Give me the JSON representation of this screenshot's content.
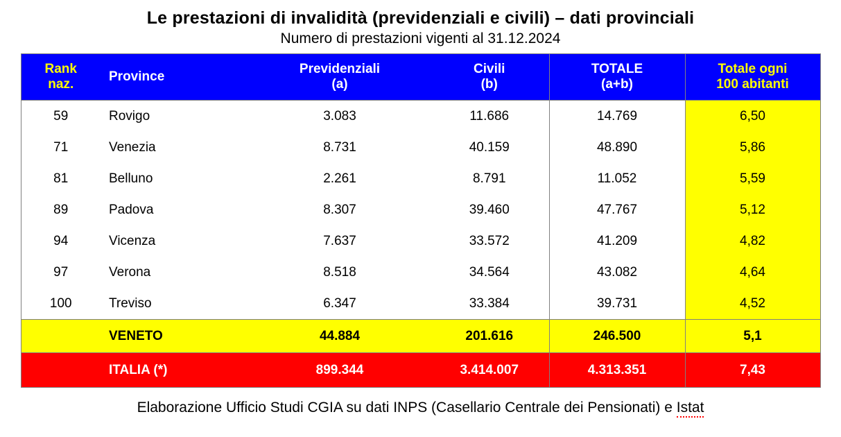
{
  "title": "Le prestazioni di invalidità (previdenziali e civili) – dati provinciali",
  "subtitle": "Numero di prestazioni vigenti al 31.12.2024",
  "colors": {
    "header_bg": "#0000FF",
    "header_text": "#FFFFFF",
    "header_accent_text": "#FFFF00",
    "highlight_bg": "#FFFF00",
    "italia_bg": "#FF0000",
    "italia_text": "#FFFFFF",
    "grid_border": "#808080",
    "spellcheck_underline": "#FF0000"
  },
  "table": {
    "columns": [
      {
        "id": "rank",
        "label": "Rank\nnaz.",
        "accent": true,
        "sep": false,
        "highlight": false
      },
      {
        "id": "province",
        "label": "Province",
        "accent": false,
        "sep": false,
        "highlight": false
      },
      {
        "id": "previdenziali",
        "label": "Previdenziali\n(a)",
        "accent": false,
        "sep": false,
        "highlight": false
      },
      {
        "id": "civili",
        "label": "Civili\n(b)",
        "accent": false,
        "sep": false,
        "highlight": false
      },
      {
        "id": "totale",
        "label": "TOTALE\n(a+b)",
        "accent": false,
        "sep": true,
        "highlight": false
      },
      {
        "id": "per100",
        "label": "Totale ogni\n100 abitanti",
        "accent": true,
        "sep": true,
        "highlight": true
      }
    ],
    "rows": [
      {
        "rank": "59",
        "province": "Rovigo",
        "previdenziali": "3.083",
        "civili": "11.686",
        "totale": "14.769",
        "per100": "6,50"
      },
      {
        "rank": "71",
        "province": "Venezia",
        "previdenziali": "8.731",
        "civili": "40.159",
        "totale": "48.890",
        "per100": "5,86"
      },
      {
        "rank": "81",
        "province": "Belluno",
        "previdenziali": "2.261",
        "civili": "8.791",
        "totale": "11.052",
        "per100": "5,59"
      },
      {
        "rank": "89",
        "province": "Padova",
        "previdenziali": "8.307",
        "civili": "39.460",
        "totale": "47.767",
        "per100": "5,12"
      },
      {
        "rank": "94",
        "province": "Vicenza",
        "previdenziali": "7.637",
        "civili": "33.572",
        "totale": "41.209",
        "per100": "4,82"
      },
      {
        "rank": "97",
        "province": "Verona",
        "previdenziali": "8.518",
        "civili": "34.564",
        "totale": "43.082",
        "per100": "4,64"
      },
      {
        "rank": "100",
        "province": "Treviso",
        "previdenziali": "6.347",
        "civili": "33.384",
        "totale": "39.731",
        "per100": "4,52"
      }
    ],
    "totals": [
      {
        "style": "veneto",
        "rank": "",
        "province": "VENETO",
        "previdenziali": "44.884",
        "civili": "201.616",
        "totale": "246.500",
        "per100": "5,1"
      },
      {
        "style": "italia",
        "rank": "",
        "province": "ITALIA (*)",
        "previdenziali": "899.344",
        "civili": "3.414.007",
        "totale": "4.313.351",
        "per100": "7,43"
      }
    ]
  },
  "footer": {
    "text": "Elaborazione Ufficio Studi CGIA su dati INPS (Casellario Centrale dei Pensionati) e ",
    "istat": "Istat"
  },
  "chart_data": {
    "type": "table",
    "title": "Le prestazioni di invalidità (previdenziali e civili) – dati provinciali",
    "subtitle": "Numero di prestazioni vigenti al 31.12.2024",
    "columns": [
      "Rank naz.",
      "Province",
      "Previdenziali (a)",
      "Civili (b)",
      "TOTALE (a+b)",
      "Totale ogni 100 abitanti"
    ],
    "rows": [
      [
        59,
        "Rovigo",
        3083,
        11686,
        14769,
        6.5
      ],
      [
        71,
        "Venezia",
        8731,
        40159,
        48890,
        5.86
      ],
      [
        81,
        "Belluno",
        2261,
        8791,
        11052,
        5.59
      ],
      [
        89,
        "Padova",
        8307,
        39460,
        47767,
        5.12
      ],
      [
        94,
        "Vicenza",
        7637,
        33572,
        41209,
        4.82
      ],
      [
        97,
        "Verona",
        8518,
        34564,
        43082,
        4.64
      ],
      [
        100,
        "Treviso",
        6347,
        33384,
        39731,
        4.52
      ]
    ],
    "totals": [
      [
        null,
        "VENETO",
        44884,
        201616,
        246500,
        5.1
      ],
      [
        null,
        "ITALIA (*)",
        899344,
        3414007,
        4313351,
        7.43
      ]
    ],
    "source": "Elaborazione Ufficio Studi CGIA su dati INPS (Casellario Centrale dei Pensionati) e Istat"
  }
}
